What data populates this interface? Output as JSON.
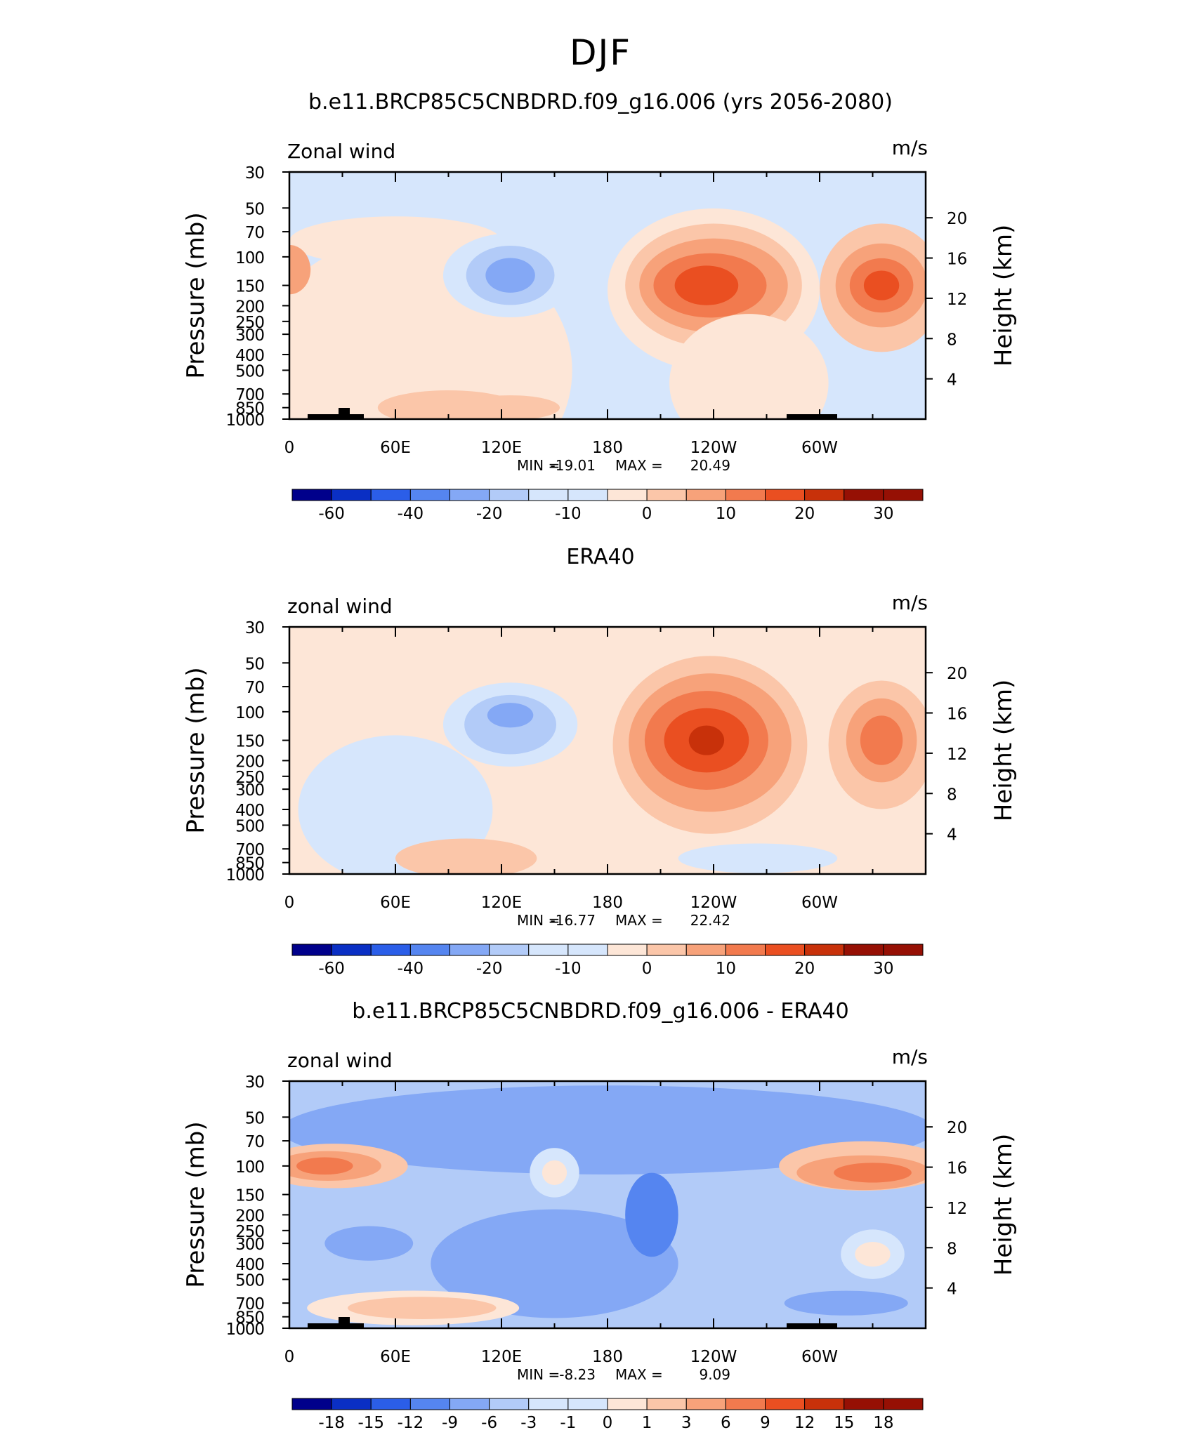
{
  "title": "DJF",
  "colors": {
    "cool": [
      "#00008b",
      "#0a2fc4",
      "#2b5ee8",
      "#5585f0",
      "#84a8f5",
      "#b2cbf8",
      "#d6e6fc"
    ],
    "warm": [
      "#fde6d7",
      "#fbc6a9",
      "#f7a27a",
      "#f27a4e",
      "#ea4f21",
      "#c8310a",
      "#961004"
    ]
  },
  "chart_data": [
    {
      "type": "contour",
      "title": "b.e11.BRCP85C5CNBDRD.f09_g16.006 (yrs 2056-2080)",
      "field_label": "Zonal wind",
      "units": "m/s",
      "ylabel": "Pressure (mb)",
      "y2label": "Height (km)",
      "x_ticks": [
        "0",
        "60E",
        "120E",
        "180",
        "120W",
        "60W"
      ],
      "y_ticks": [
        "30",
        "50",
        "70",
        "100",
        "150",
        "200",
        "250",
        "300",
        "400",
        "500",
        "700",
        "850",
        "1000"
      ],
      "y2_ticks": [
        "20",
        "16",
        "12",
        "8",
        "4"
      ],
      "stats": {
        "min_label": "MIN =",
        "min": "-19.01",
        "max_label": "MAX =",
        "max": "20.49"
      },
      "colorbar_labels": [
        "-60",
        "-40",
        "-20",
        "-10",
        "0",
        "10",
        "20",
        "30"
      ],
      "features": [
        {
          "name": "Westerly jet maximum (120W-110W)",
          "lon": 240,
          "p": 150,
          "value": 20.49
        },
        {
          "name": "Westerly jet maximum (30W-20W)",
          "lon": 335,
          "p": 150,
          "value": 18
        },
        {
          "name": "Easterly minimum near 130E",
          "lon": 125,
          "p": 120,
          "value": -19.01
        }
      ]
    },
    {
      "type": "contour",
      "title": "ERA40",
      "field_label": "zonal wind",
      "units": "m/s",
      "ylabel": "Pressure (mb)",
      "y2label": "Height (km)",
      "x_ticks": [
        "0",
        "60E",
        "120E",
        "180",
        "120W",
        "60W"
      ],
      "y_ticks": [
        "30",
        "50",
        "70",
        "100",
        "150",
        "200",
        "250",
        "300",
        "400",
        "500",
        "700",
        "850",
        "1000"
      ],
      "y2_ticks": [
        "20",
        "16",
        "12",
        "8",
        "4"
      ],
      "stats": {
        "min_label": "MIN =",
        "min": "-16.77",
        "max_label": "MAX =",
        "max": "22.42"
      },
      "colorbar_labels": [
        "-60",
        "-40",
        "-20",
        "-10",
        "0",
        "10",
        "20",
        "30"
      ],
      "features": [
        {
          "name": "Westerly jet maximum (125W)",
          "lon": 236,
          "p": 150,
          "value": 22.42
        },
        {
          "name": "Westerly jet maximum (20W)",
          "lon": 340,
          "p": 150,
          "value": 18
        },
        {
          "name": "Easterly minimum near 125E",
          "lon": 125,
          "p": 110,
          "value": -16.77
        }
      ]
    },
    {
      "type": "contour",
      "title": "b.e11.BRCP85C5CNBDRD.f09_g16.006 - ERA40",
      "field_label": "zonal wind",
      "units": "m/s",
      "ylabel": "Pressure (mb)",
      "y2label": "Height (km)",
      "x_ticks": [
        "0",
        "60E",
        "120E",
        "180",
        "120W",
        "60W"
      ],
      "y_ticks": [
        "30",
        "50",
        "70",
        "100",
        "150",
        "200",
        "250",
        "300",
        "400",
        "500",
        "700",
        "850",
        "1000"
      ],
      "y2_ticks": [
        "20",
        "16",
        "12",
        "8",
        "4"
      ],
      "stats": {
        "min_label": "MIN =",
        "min": "-8.23",
        "max_label": "MAX =",
        "max": "9.09"
      },
      "colorbar_labels": [
        "-18",
        "-15",
        "-12",
        "-9",
        "-6",
        "-3",
        "-1",
        "0",
        "1",
        "3",
        "6",
        "9",
        "12",
        "15",
        "18"
      ],
      "features": [
        {
          "name": "Positive bias near 20E",
          "lon": 20,
          "p": 100,
          "value": 9.09
        },
        {
          "name": "Positive bias near 50W",
          "lon": 310,
          "p": 100,
          "value": 8
        },
        {
          "name": "Negative bias near 150W",
          "lon": 210,
          "p": 200,
          "value": -8.23
        }
      ]
    }
  ]
}
